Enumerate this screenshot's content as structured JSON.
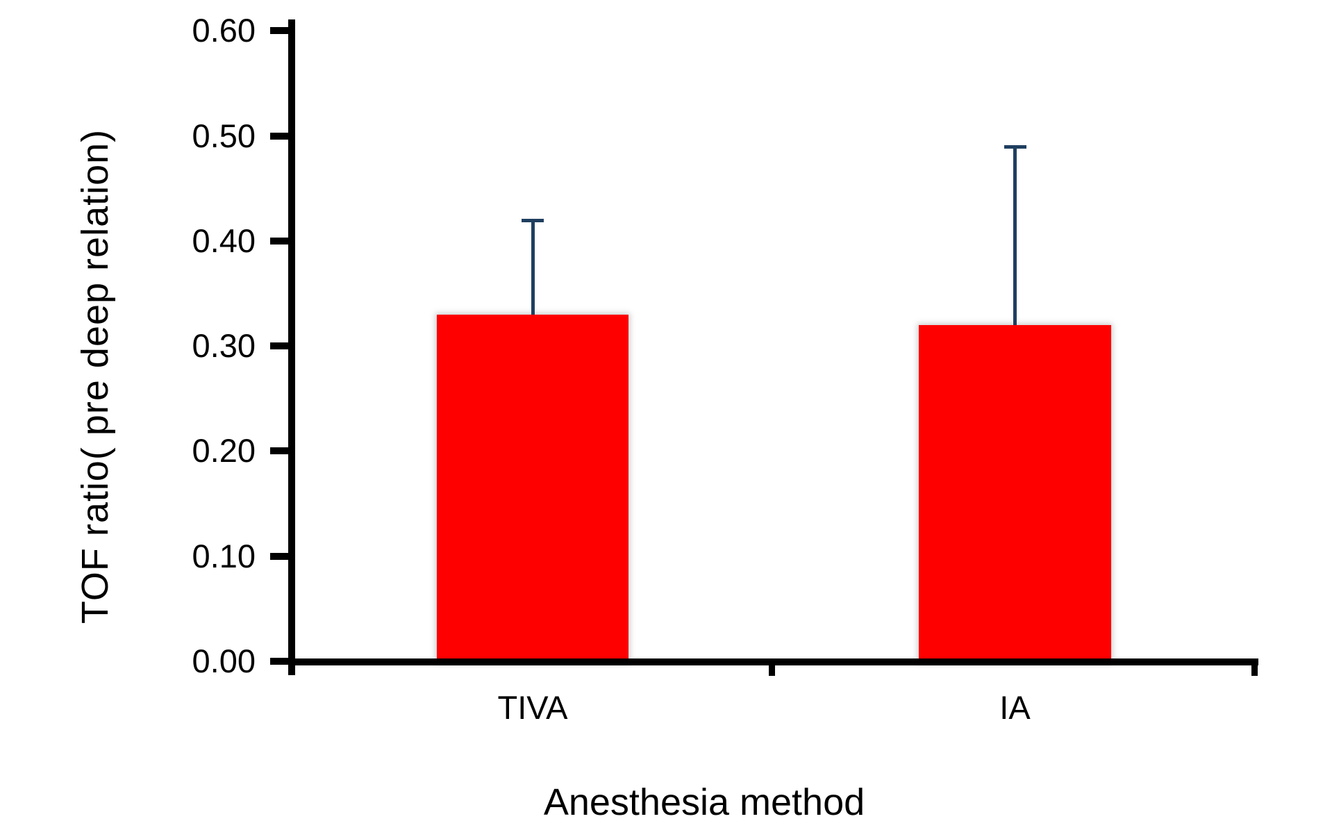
{
  "chart_data": {
    "type": "bar",
    "title": "",
    "xlabel": "Anesthesia method",
    "ylabel": "TOF ratio( pre deep relation)",
    "categories": [
      "TIVA",
      "IA"
    ],
    "values": [
      0.33,
      0.32
    ],
    "error_upper": [
      0.09,
      0.17
    ],
    "error_bar_tops": [
      0.42,
      0.49
    ],
    "ylim": [
      0.0,
      0.6
    ],
    "ytick_step": 0.1,
    "yticks": [
      "0.00",
      "0.10",
      "0.20",
      "0.30",
      "0.40",
      "0.50",
      "0.60"
    ],
    "grid": false,
    "legend": "none",
    "bar_color": "#FF0000",
    "error_bar_color": "#1F3F5F",
    "axis_color": "#000000",
    "background_color": "#FFFFFF"
  }
}
